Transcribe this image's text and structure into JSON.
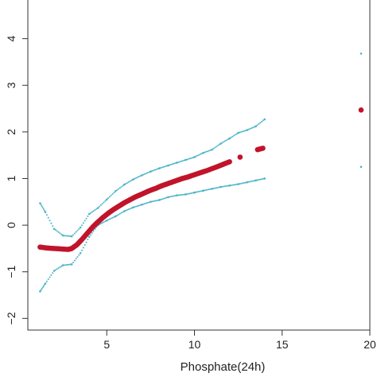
{
  "chart_data": {
    "type": "scatter",
    "title": "",
    "xlabel": "Phosphate(24h)",
    "ylabel": "",
    "xlim": [
      0.5,
      20
    ],
    "ylim": [
      -2.25,
      5
    ],
    "x_ticks": [
      5,
      10,
      15,
      20
    ],
    "x_tick_labels": [
      "5",
      "10",
      "15",
      "20"
    ],
    "y_ticks": [
      -2,
      -1,
      0,
      1,
      2,
      3,
      4,
      5
    ],
    "y_tick_labels": [
      "−2",
      "−1",
      "0",
      "1",
      "2",
      "3",
      "4",
      "5"
    ],
    "grid": false,
    "legend": "none",
    "colors": {
      "estimate": "#c0142a",
      "confidence_band": "#4bb3c8",
      "axis": "#333333"
    },
    "series": [
      {
        "style": "points",
        "x": [
          1.2,
          1.6,
          2.0,
          2.4,
          2.8,
          3.0,
          3.3,
          3.6,
          3.9,
          4.2,
          4.5,
          4.8,
          5.1,
          5.4,
          5.7,
          6.0,
          6.3,
          6.6,
          6.9,
          7.2,
          7.5,
          7.8,
          8.1,
          8.4,
          8.7,
          9.0,
          9.3,
          9.6,
          9.9,
          10.3,
          10.7,
          11.2,
          11.6,
          12.0,
          12.6,
          13.6,
          13.9,
          19.5
        ],
        "y": [
          -0.47,
          -0.49,
          -0.5,
          -0.51,
          -0.52,
          -0.5,
          -0.42,
          -0.3,
          -0.17,
          -0.04,
          0.07,
          0.17,
          0.26,
          0.34,
          0.41,
          0.48,
          0.54,
          0.6,
          0.65,
          0.7,
          0.75,
          0.79,
          0.84,
          0.88,
          0.92,
          0.96,
          1.0,
          1.03,
          1.07,
          1.12,
          1.17,
          1.24,
          1.3,
          1.36,
          1.46,
          1.62,
          1.65,
          2.47
        ]
      },
      {
        "style": "dotted",
        "x": [
          1.2,
          1.5,
          2.0,
          2.5,
          3.0,
          3.5,
          4.0,
          4.5,
          5.0,
          5.5,
          6.0,
          6.5,
          7.0,
          7.5,
          8.0,
          8.5,
          9.0,
          9.5,
          10.0,
          10.5,
          11.0,
          11.5,
          12.0,
          12.5,
          13.0,
          13.5,
          14.0,
          19.5
        ],
        "y": [
          0.47,
          0.28,
          -0.08,
          -0.22,
          -0.24,
          -0.05,
          0.24,
          0.37,
          0.55,
          0.73,
          0.87,
          0.98,
          1.07,
          1.15,
          1.22,
          1.28,
          1.34,
          1.4,
          1.46,
          1.55,
          1.62,
          1.75,
          1.86,
          1.98,
          2.04,
          2.12,
          2.27,
          3.68
        ]
      },
      {
        "style": "dotted",
        "x": [
          1.2,
          1.5,
          2.0,
          2.5,
          3.0,
          3.5,
          4.0,
          4.5,
          5.0,
          5.5,
          6.0,
          6.5,
          7.0,
          7.5,
          8.0,
          8.5,
          9.0,
          9.5,
          10.0,
          10.5,
          11.0,
          11.5,
          12.0,
          12.5,
          13.0,
          13.5,
          14.0,
          19.5
        ],
        "y": [
          -1.42,
          -1.25,
          -0.98,
          -0.86,
          -0.84,
          -0.6,
          -0.25,
          0.0,
          0.1,
          0.19,
          0.3,
          0.38,
          0.44,
          0.5,
          0.54,
          0.6,
          0.64,
          0.66,
          0.7,
          0.74,
          0.78,
          0.82,
          0.85,
          0.88,
          0.92,
          0.96,
          1.0,
          1.25
        ]
      }
    ]
  }
}
